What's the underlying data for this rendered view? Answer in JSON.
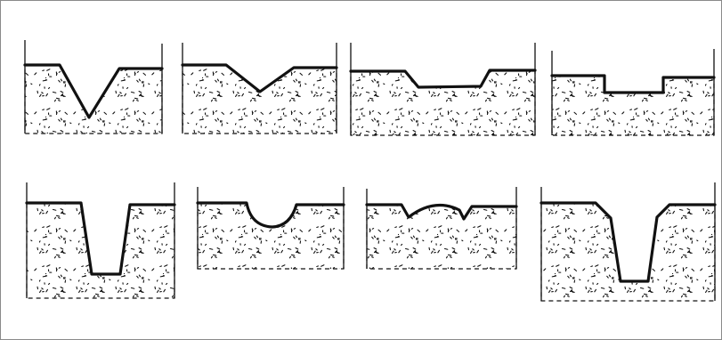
{
  "figure": {
    "colors": {
      "ink": "#111111",
      "paper": "#ffffff",
      "frame": "#8a8a8a"
    },
    "profiles": [
      {
        "id": "v-shaped"
      },
      {
        "id": "shallow-v"
      },
      {
        "id": "trapezoid-shallow"
      },
      {
        "id": "rectangular-shallow"
      },
      {
        "id": "deep-u-narrow"
      },
      {
        "id": "semicircular"
      },
      {
        "id": "double-bump"
      },
      {
        "id": "deep-trapezoid"
      }
    ]
  }
}
